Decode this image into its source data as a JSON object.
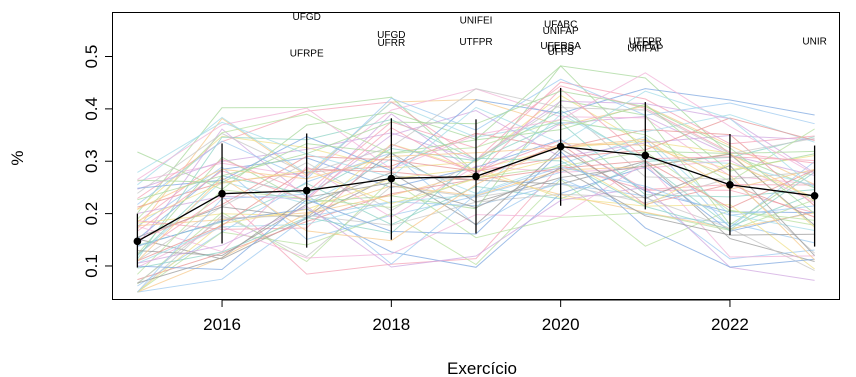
{
  "chart_data": {
    "type": "line",
    "title": "",
    "xlabel": "Exercício",
    "ylabel": "%",
    "xlim": [
      2014.7,
      2023.3
    ],
    "ylim": [
      0.035,
      0.585
    ],
    "x_ticks": [
      2016,
      2018,
      2020,
      2022
    ],
    "y_ticks": [
      0.1,
      0.2,
      0.3,
      0.4,
      0.5
    ],
    "y_tick_labels": [
      "0.1",
      "0.2",
      "0.3",
      "0.4",
      "0.5"
    ],
    "x": [
      2015,
      2016,
      2017,
      2018,
      2019,
      2020,
      2021,
      2022,
      2023
    ],
    "mean_series": {
      "values": [
        0.147,
        0.238,
        0.244,
        0.267,
        0.271,
        0.328,
        0.311,
        0.255,
        0.234
      ],
      "lower": [
        0.097,
        0.143,
        0.135,
        0.15,
        0.162,
        0.215,
        0.208,
        0.159,
        0.137
      ],
      "upper": [
        0.2,
        0.334,
        0.353,
        0.382,
        0.38,
        0.44,
        0.413,
        0.352,
        0.33
      ]
    },
    "annotations": [
      {
        "text": "UFGD",
        "x": 2017,
        "y": 0.57
      },
      {
        "text": "UFRPE",
        "x": 2017,
        "y": 0.5
      },
      {
        "text": "UFGD",
        "x": 2018,
        "y": 0.535
      },
      {
        "text": "UFRR",
        "x": 2018,
        "y": 0.52
      },
      {
        "text": "UNIFEI",
        "x": 2019,
        "y": 0.563
      },
      {
        "text": "UTFPR",
        "x": 2019,
        "y": 0.522
      },
      {
        "text": "UFABC",
        "x": 2020,
        "y": 0.555
      },
      {
        "text": "UNIFAP",
        "x": 2020,
        "y": 0.543
      },
      {
        "text": "UFERSA",
        "x": 2020,
        "y": 0.514
      },
      {
        "text": "UFRB",
        "x": 2020,
        "y": 0.51
      },
      {
        "text": "UFFS",
        "x": 2020,
        "y": 0.503
      },
      {
        "text": "UTFPR",
        "x": 2021,
        "y": 0.523
      },
      {
        "text": "UFPEL",
        "x": 2021,
        "y": 0.515
      },
      {
        "text": "UNIFAP",
        "x": 2021,
        "y": 0.51
      },
      {
        "text": "UNIR",
        "x": 2023,
        "y": 0.523
      }
    ],
    "grid": false,
    "legend": "none",
    "background_series_count": 60,
    "colors": {
      "mean_line": "#000000",
      "error_bar": "#000000",
      "axes": "#000000",
      "palette": [
        "#f4a3b5",
        "#9ec9f0",
        "#f7c98c",
        "#a8d89c",
        "#d0a8e0",
        "#8fd3c6",
        "#f0e08a",
        "#c7c7c7",
        "#7fa8e0",
        "#e89595",
        "#b8e0a0",
        "#f2b3d8",
        "#999999",
        "#a4dce8"
      ]
    }
  }
}
